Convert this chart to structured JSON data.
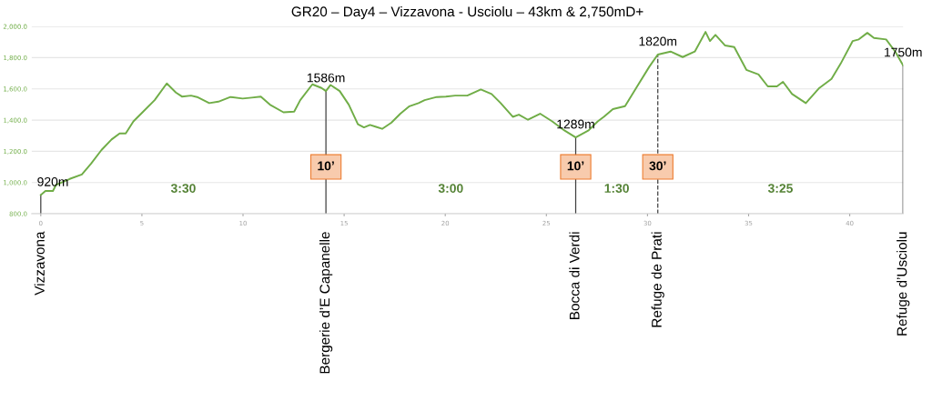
{
  "chart_data": {
    "type": "line",
    "title": "GR20 – Day4 – Vizzavona - Usciolu – 43km & 2,750mD+",
    "x": [
      0,
      0.23,
      0.6,
      0.75,
      1.43,
      2.03,
      2.48,
      3.0,
      3.5,
      3.9,
      4.2,
      4.58,
      5.03,
      5.63,
      6.23,
      6.68,
      6.98,
      7.43,
      7.73,
      8.33,
      8.78,
      9.38,
      9.98,
      10.43,
      10.88,
      11.33,
      12.0,
      12.53,
      12.83,
      13.43,
      13.88,
      14.1,
      14.33,
      14.78,
      15.23,
      15.68,
      15.98,
      16.28,
      16.58,
      16.88,
      17.33,
      17.78,
      18.23,
      18.68,
      18.98,
      19.58,
      20.03,
      20.49,
      21.09,
      21.76,
      22.29,
      22.74,
      23.34,
      23.64,
      24.09,
      24.69,
      25.29,
      25.89,
      26.45,
      27.09,
      27.54,
      27.84,
      28.29,
      28.89,
      29.49,
      30.09,
      30.51,
      31.14,
      31.74,
      32.34,
      32.87,
      33.09,
      33.36,
      33.84,
      34.29,
      34.89,
      35.49,
      35.95,
      36.4,
      36.7,
      37.15,
      37.83,
      38.5,
      39.1,
      39.55,
      40.15,
      40.45,
      40.87,
      41.2,
      41.8,
      42.25,
      42.64
    ],
    "series": [
      {
        "color": "#70ad47",
        "values": [
          920,
          946,
          946,
          984,
          1023,
          1052,
          1120,
          1208,
          1276,
          1315,
          1315,
          1392,
          1450,
          1528,
          1635,
          1577,
          1551,
          1557,
          1548,
          1509,
          1518,
          1548,
          1538,
          1544,
          1551,
          1499,
          1450,
          1454,
          1528,
          1629,
          1606,
          1586,
          1625,
          1586,
          1499,
          1373,
          1353,
          1369,
          1357,
          1344,
          1383,
          1441,
          1489,
          1509,
          1528,
          1548,
          1551,
          1557,
          1557,
          1596,
          1567,
          1509,
          1421,
          1435,
          1402,
          1441,
          1392,
          1334,
          1289,
          1334,
          1392,
          1421,
          1470,
          1489,
          1616,
          1742,
          1820,
          1839,
          1804,
          1839,
          1965,
          1907,
          1946,
          1878,
          1868,
          1722,
          1693,
          1616,
          1616,
          1645,
          1567,
          1509,
          1606,
          1664,
          1761,
          1907,
          1917,
          1959,
          1926,
          1917,
          1839,
          1750
        ]
      }
    ],
    "xlim": [
      -0.45,
      42.64
    ],
    "ylim": [
      800,
      2000
    ],
    "xticks": [
      0,
      5,
      10,
      15,
      20,
      25,
      30,
      35,
      40
    ],
    "yticks": [
      {
        "value": 800,
        "label": "800.0"
      },
      {
        "value": 1000,
        "label": "1,000.0"
      },
      {
        "value": 1200,
        "label": "1,200.0"
      },
      {
        "value": 1400,
        "label": "1,400.0"
      },
      {
        "value": 1600,
        "label": "1,600.0"
      },
      {
        "value": 1800,
        "label": "1,800.0"
      },
      {
        "value": 2000,
        "label": "2,000.0"
      }
    ],
    "grid": "y",
    "marker": "none",
    "line_style": "solid",
    "ref_lines": [
      {
        "axis": "x",
        "value": 0,
        "label": "Vizzavona",
        "color": "#404040",
        "line_style": "solid"
      },
      {
        "axis": "x",
        "value": 14.1,
        "label": "Bergerie d’E Capanelle",
        "color": "#404040",
        "line_style": "solid"
      },
      {
        "axis": "x",
        "value": 26.45,
        "label": "Bocca di Verdi",
        "color": "#404040",
        "line_style": "solid"
      },
      {
        "axis": "x",
        "value": 30.51,
        "label": "Refuge de Prati",
        "color": "#404040",
        "line_style": "dashed"
      },
      {
        "axis": "x",
        "value": 42.64,
        "label": "Refuge d’Usciolu",
        "color": "#404040",
        "line_style": "solid"
      }
    ],
    "annotations": [
      {
        "text": "920m",
        "x": 0,
        "y": 920
      },
      {
        "text": "1586m",
        "x": 14.1,
        "y": 1586
      },
      {
        "text": "1289m",
        "x": 26.45,
        "y": 1289
      },
      {
        "text": "1820m",
        "x": 30.51,
        "y": 1820
      },
      {
        "text": "1750m",
        "x": 42.64,
        "y": 1750
      },
      {
        "text": "10’",
        "x": 14.1,
        "y": 1100
      },
      {
        "text": "10’",
        "x": 26.45,
        "y": 1100
      },
      {
        "text": "30’",
        "x": 30.51,
        "y": 1100
      },
      "3:30",
      "3:00",
      "1:30",
      "3:25"
    ]
  }
}
